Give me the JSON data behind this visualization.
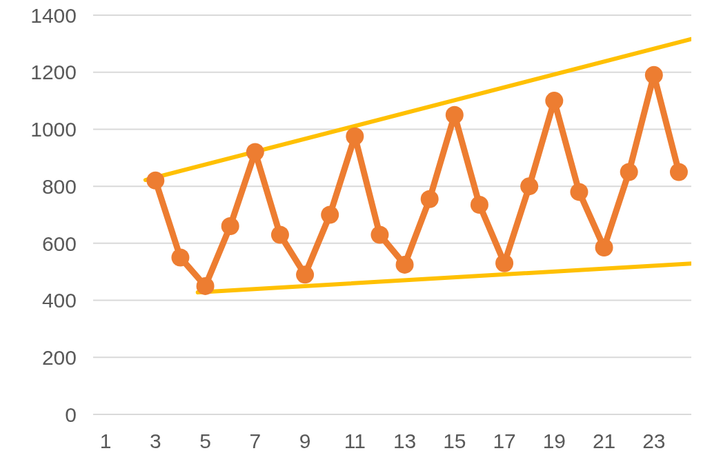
{
  "chart_data": {
    "type": "line",
    "xlim": [
      0.5,
      24.5
    ],
    "xticks": [
      1,
      3,
      5,
      7,
      9,
      11,
      13,
      15,
      17,
      19,
      21,
      23
    ],
    "ylim": [
      0,
      1400
    ],
    "yticks": [
      0,
      200,
      400,
      600,
      800,
      1000,
      1200,
      1400
    ],
    "grid": "y",
    "marker": "circle",
    "line_style": "solid",
    "series": [
      {
        "color": "#ed7d31",
        "x": [
          3,
          4,
          5,
          6,
          7,
          8,
          9,
          10,
          11,
          12,
          13,
          14,
          15,
          16,
          17,
          18,
          19,
          20,
          21,
          22,
          23,
          24
        ],
        "values": [
          820,
          550,
          450,
          660,
          920,
          630,
          490,
          700,
          975,
          630,
          525,
          755,
          1050,
          735,
          530,
          800,
          1100,
          780,
          585,
          850,
          1190,
          850
        ]
      },
      {
        "type": "line",
        "marker": "none",
        "color": "#ffc000",
        "x": [
          2.6,
          24.5
        ],
        "values": [
          822,
          1316
        ]
      },
      {
        "type": "line",
        "marker": "none",
        "color": "#ffc000",
        "x": [
          4.7,
          24.5
        ],
        "values": [
          428,
          529
        ]
      }
    ]
  }
}
